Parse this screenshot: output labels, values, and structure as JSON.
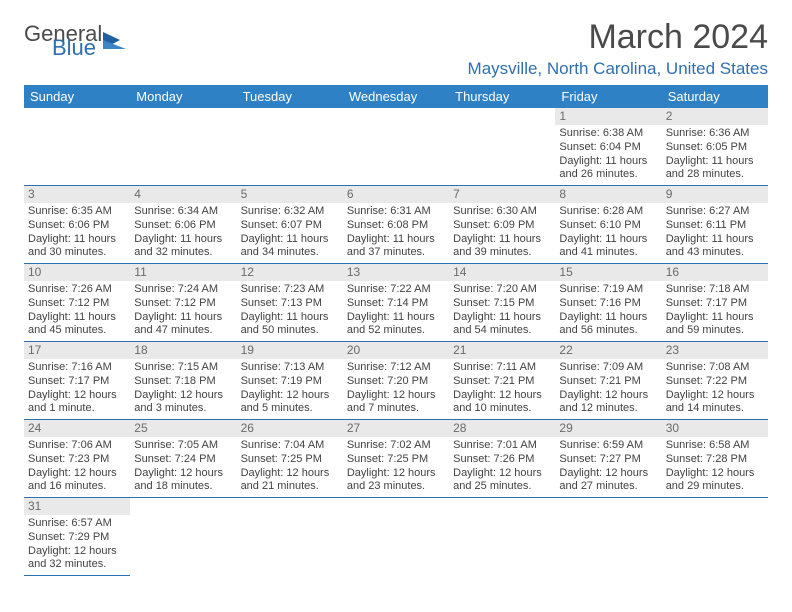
{
  "logo": {
    "line1": "General",
    "line2": "Blue"
  },
  "title": "March 2024",
  "subtitle": "Maysville, North Carolina, United States",
  "weekdays": [
    "Sunday",
    "Monday",
    "Tuesday",
    "Wednesday",
    "Thursday",
    "Friday",
    "Saturday"
  ],
  "colors": {
    "header_bg": "#2f81c5",
    "accent": "#2f6fb0",
    "daynum_bg": "#e9e9e9",
    "text": "#424242"
  },
  "cells": [
    {
      "day": "",
      "lines": []
    },
    {
      "day": "",
      "lines": []
    },
    {
      "day": "",
      "lines": []
    },
    {
      "day": "",
      "lines": []
    },
    {
      "day": "",
      "lines": []
    },
    {
      "day": "1",
      "lines": [
        "Sunrise: 6:38 AM",
        "Sunset: 6:04 PM",
        "Daylight: 11 hours and 26 minutes."
      ]
    },
    {
      "day": "2",
      "lines": [
        "Sunrise: 6:36 AM",
        "Sunset: 6:05 PM",
        "Daylight: 11 hours and 28 minutes."
      ]
    },
    {
      "day": "3",
      "lines": [
        "Sunrise: 6:35 AM",
        "Sunset: 6:06 PM",
        "Daylight: 11 hours and 30 minutes."
      ]
    },
    {
      "day": "4",
      "lines": [
        "Sunrise: 6:34 AM",
        "Sunset: 6:06 PM",
        "Daylight: 11 hours and 32 minutes."
      ]
    },
    {
      "day": "5",
      "lines": [
        "Sunrise: 6:32 AM",
        "Sunset: 6:07 PM",
        "Daylight: 11 hours and 34 minutes."
      ]
    },
    {
      "day": "6",
      "lines": [
        "Sunrise: 6:31 AM",
        "Sunset: 6:08 PM",
        "Daylight: 11 hours and 37 minutes."
      ]
    },
    {
      "day": "7",
      "lines": [
        "Sunrise: 6:30 AM",
        "Sunset: 6:09 PM",
        "Daylight: 11 hours and 39 minutes."
      ]
    },
    {
      "day": "8",
      "lines": [
        "Sunrise: 6:28 AM",
        "Sunset: 6:10 PM",
        "Daylight: 11 hours and 41 minutes."
      ]
    },
    {
      "day": "9",
      "lines": [
        "Sunrise: 6:27 AM",
        "Sunset: 6:11 PM",
        "Daylight: 11 hours and 43 minutes."
      ]
    },
    {
      "day": "10",
      "lines": [
        "Sunrise: 7:26 AM",
        "Sunset: 7:12 PM",
        "Daylight: 11 hours and 45 minutes."
      ]
    },
    {
      "day": "11",
      "lines": [
        "Sunrise: 7:24 AM",
        "Sunset: 7:12 PM",
        "Daylight: 11 hours and 47 minutes."
      ]
    },
    {
      "day": "12",
      "lines": [
        "Sunrise: 7:23 AM",
        "Sunset: 7:13 PM",
        "Daylight: 11 hours and 50 minutes."
      ]
    },
    {
      "day": "13",
      "lines": [
        "Sunrise: 7:22 AM",
        "Sunset: 7:14 PM",
        "Daylight: 11 hours and 52 minutes."
      ]
    },
    {
      "day": "14",
      "lines": [
        "Sunrise: 7:20 AM",
        "Sunset: 7:15 PM",
        "Daylight: 11 hours and 54 minutes."
      ]
    },
    {
      "day": "15",
      "lines": [
        "Sunrise: 7:19 AM",
        "Sunset: 7:16 PM",
        "Daylight: 11 hours and 56 minutes."
      ]
    },
    {
      "day": "16",
      "lines": [
        "Sunrise: 7:18 AM",
        "Sunset: 7:17 PM",
        "Daylight: 11 hours and 59 minutes."
      ]
    },
    {
      "day": "17",
      "lines": [
        "Sunrise: 7:16 AM",
        "Sunset: 7:17 PM",
        "Daylight: 12 hours and 1 minute."
      ]
    },
    {
      "day": "18",
      "lines": [
        "Sunrise: 7:15 AM",
        "Sunset: 7:18 PM",
        "Daylight: 12 hours and 3 minutes."
      ]
    },
    {
      "day": "19",
      "lines": [
        "Sunrise: 7:13 AM",
        "Sunset: 7:19 PM",
        "Daylight: 12 hours and 5 minutes."
      ]
    },
    {
      "day": "20",
      "lines": [
        "Sunrise: 7:12 AM",
        "Sunset: 7:20 PM",
        "Daylight: 12 hours and 7 minutes."
      ]
    },
    {
      "day": "21",
      "lines": [
        "Sunrise: 7:11 AM",
        "Sunset: 7:21 PM",
        "Daylight: 12 hours and 10 minutes."
      ]
    },
    {
      "day": "22",
      "lines": [
        "Sunrise: 7:09 AM",
        "Sunset: 7:21 PM",
        "Daylight: 12 hours and 12 minutes."
      ]
    },
    {
      "day": "23",
      "lines": [
        "Sunrise: 7:08 AM",
        "Sunset: 7:22 PM",
        "Daylight: 12 hours and 14 minutes."
      ]
    },
    {
      "day": "24",
      "lines": [
        "Sunrise: 7:06 AM",
        "Sunset: 7:23 PM",
        "Daylight: 12 hours and 16 minutes."
      ]
    },
    {
      "day": "25",
      "lines": [
        "Sunrise: 7:05 AM",
        "Sunset: 7:24 PM",
        "Daylight: 12 hours and 18 minutes."
      ]
    },
    {
      "day": "26",
      "lines": [
        "Sunrise: 7:04 AM",
        "Sunset: 7:25 PM",
        "Daylight: 12 hours and 21 minutes."
      ]
    },
    {
      "day": "27",
      "lines": [
        "Sunrise: 7:02 AM",
        "Sunset: 7:25 PM",
        "Daylight: 12 hours and 23 minutes."
      ]
    },
    {
      "day": "28",
      "lines": [
        "Sunrise: 7:01 AM",
        "Sunset: 7:26 PM",
        "Daylight: 12 hours and 25 minutes."
      ]
    },
    {
      "day": "29",
      "lines": [
        "Sunrise: 6:59 AM",
        "Sunset: 7:27 PM",
        "Daylight: 12 hours and 27 minutes."
      ]
    },
    {
      "day": "30",
      "lines": [
        "Sunrise: 6:58 AM",
        "Sunset: 7:28 PM",
        "Daylight: 12 hours and 29 minutes."
      ]
    },
    {
      "day": "31",
      "lines": [
        "Sunrise: 6:57 AM",
        "Sunset: 7:29 PM",
        "Daylight: 12 hours and 32 minutes."
      ]
    },
    {
      "day": "",
      "lines": []
    },
    {
      "day": "",
      "lines": []
    },
    {
      "day": "",
      "lines": []
    },
    {
      "day": "",
      "lines": []
    },
    {
      "day": "",
      "lines": []
    },
    {
      "day": "",
      "lines": []
    }
  ]
}
